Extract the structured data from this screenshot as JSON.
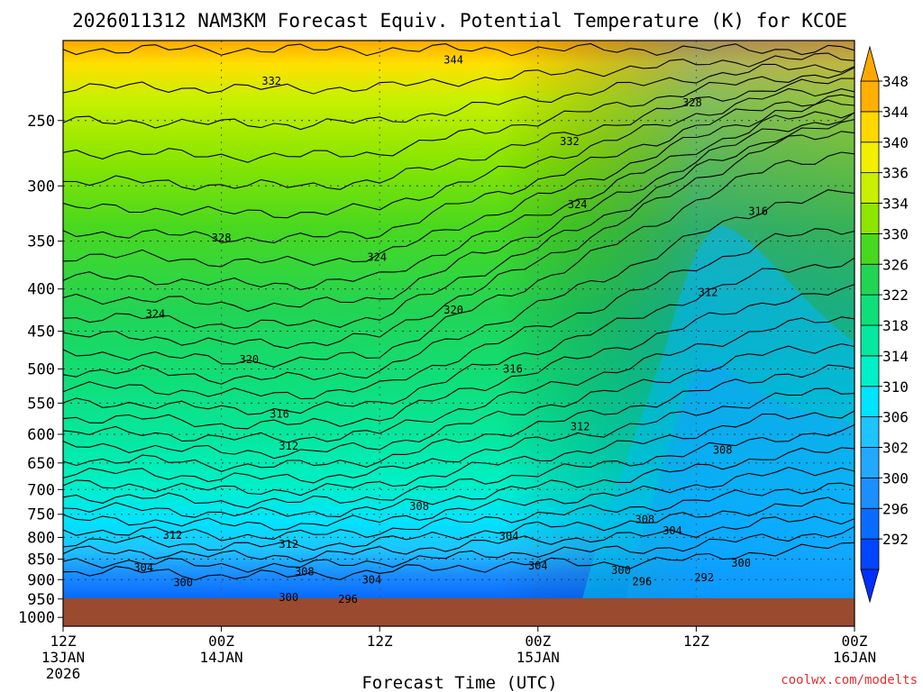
{
  "chart_data": {
    "type": "heatmap",
    "title": "2026011312 NAM3KM Forecast Equiv. Potential Temperature (K) for KCOE",
    "xlabel": "Forecast Time (UTC)",
    "ylabel": "",
    "credit": "coolwx.com/modelts",
    "x_ticks": [
      {
        "time": "12Z",
        "date": "13JAN",
        "year": "2026",
        "hour": 0
      },
      {
        "time": "00Z",
        "date": "14JAN",
        "year": "",
        "hour": 12
      },
      {
        "time": "12Z",
        "date": "",
        "year": "",
        "hour": 24
      },
      {
        "time": "00Z",
        "date": "15JAN",
        "year": "",
        "hour": 36
      },
      {
        "time": "12Z",
        "date": "",
        "year": "",
        "hour": 48
      },
      {
        "time": "00Z",
        "date": "16JAN",
        "year": "",
        "hour": 60
      }
    ],
    "x_range_hours": [
      0,
      60
    ],
    "y_ticks": [
      250,
      300,
      350,
      400,
      450,
      500,
      550,
      600,
      650,
      700,
      750,
      800,
      850,
      900,
      950,
      1000
    ],
    "y_range_hpa": [
      200,
      1025
    ],
    "y_scale": "log-pressure",
    "ground_pressure_hpa": 948,
    "grid": "dotted",
    "colorbar": {
      "levels": [
        292,
        296,
        300,
        302,
        306,
        310,
        314,
        318,
        322,
        326,
        330,
        334,
        336,
        340,
        344,
        348
      ],
      "labels": [
        "348",
        "344",
        "340",
        "336",
        "334",
        "330",
        "326",
        "322",
        "318",
        "314",
        "310",
        "306",
        "302",
        "300",
        "296",
        "292"
      ],
      "colors": [
        "#0046ff",
        "#0a6cff",
        "#1c8fff",
        "#22a9ff",
        "#1fc3ff",
        "#00e4ff",
        "#00f0c8",
        "#06e8a0",
        "#10de78",
        "#22d454",
        "#48d820",
        "#8ce600",
        "#c8f000",
        "#f0f000",
        "#ffd800",
        "#ffb000"
      ],
      "extend": "both"
    },
    "contour_levels": [
      292,
      296,
      300,
      304,
      308,
      312,
      316,
      320,
      324,
      328,
      332,
      336,
      340,
      344
    ],
    "contour_labels": [
      {
        "text": "344",
        "hour": 29.6,
        "p": 211
      },
      {
        "text": "332",
        "hour": 15.8,
        "p": 224
      },
      {
        "text": "328",
        "hour": 47.7,
        "p": 238
      },
      {
        "text": "332",
        "hour": 38.4,
        "p": 265
      },
      {
        "text": "324",
        "hour": 39.0,
        "p": 316
      },
      {
        "text": "316",
        "hour": 52.7,
        "p": 322
      },
      {
        "text": "328",
        "hour": 12.0,
        "p": 347
      },
      {
        "text": "324",
        "hour": 23.8,
        "p": 366
      },
      {
        "text": "312",
        "hour": 48.9,
        "p": 404
      },
      {
        "text": "324",
        "hour": 7.0,
        "p": 429
      },
      {
        "text": "320",
        "hour": 29.6,
        "p": 424
      },
      {
        "text": "320",
        "hour": 14.1,
        "p": 487
      },
      {
        "text": "316",
        "hour": 34.1,
        "p": 500
      },
      {
        "text": "316",
        "hour": 16.4,
        "p": 567
      },
      {
        "text": "312",
        "hour": 39.2,
        "p": 587
      },
      {
        "text": "312",
        "hour": 17.1,
        "p": 620
      },
      {
        "text": "308",
        "hour": 50.0,
        "p": 627
      },
      {
        "text": "308",
        "hour": 27.0,
        "p": 734
      },
      {
        "text": "308",
        "hour": 44.1,
        "p": 761
      },
      {
        "text": "304",
        "hour": 46.2,
        "p": 785
      },
      {
        "text": "312",
        "hour": 8.3,
        "p": 795
      },
      {
        "text": "304",
        "hour": 33.8,
        "p": 797
      },
      {
        "text": "312",
        "hour": 17.1,
        "p": 815
      },
      {
        "text": "300",
        "hour": 51.4,
        "p": 860
      },
      {
        "text": "304",
        "hour": 6.1,
        "p": 871
      },
      {
        "text": "304",
        "hour": 36.0,
        "p": 866
      },
      {
        "text": "300",
        "hour": 42.3,
        "p": 877
      },
      {
        "text": "308",
        "hour": 18.3,
        "p": 880
      },
      {
        "text": "304",
        "hour": 23.4,
        "p": 900
      },
      {
        "text": "300",
        "hour": 9.1,
        "p": 907
      },
      {
        "text": "296",
        "hour": 43.9,
        "p": 905
      },
      {
        "text": "292",
        "hour": 48.6,
        "p": 895
      },
      {
        "text": "300",
        "hour": 17.1,
        "p": 946
      },
      {
        "text": "296",
        "hour": 21.6,
        "p": 950
      }
    ],
    "profile": {
      "hours": [
        0,
        6,
        12,
        18,
        24,
        30,
        36,
        42,
        48,
        54,
        60
      ],
      "p_320": [
        470,
        470,
        480,
        480,
        470,
        420,
        380,
        340,
        300,
        270,
        260
      ],
      "p_310": [
        700,
        700,
        720,
        720,
        720,
        700,
        640,
        520,
        400,
        420,
        500
      ],
      "p_300": [
        880,
        880,
        890,
        890,
        880,
        870,
        860,
        860,
        850,
        830,
        820
      ]
    }
  }
}
